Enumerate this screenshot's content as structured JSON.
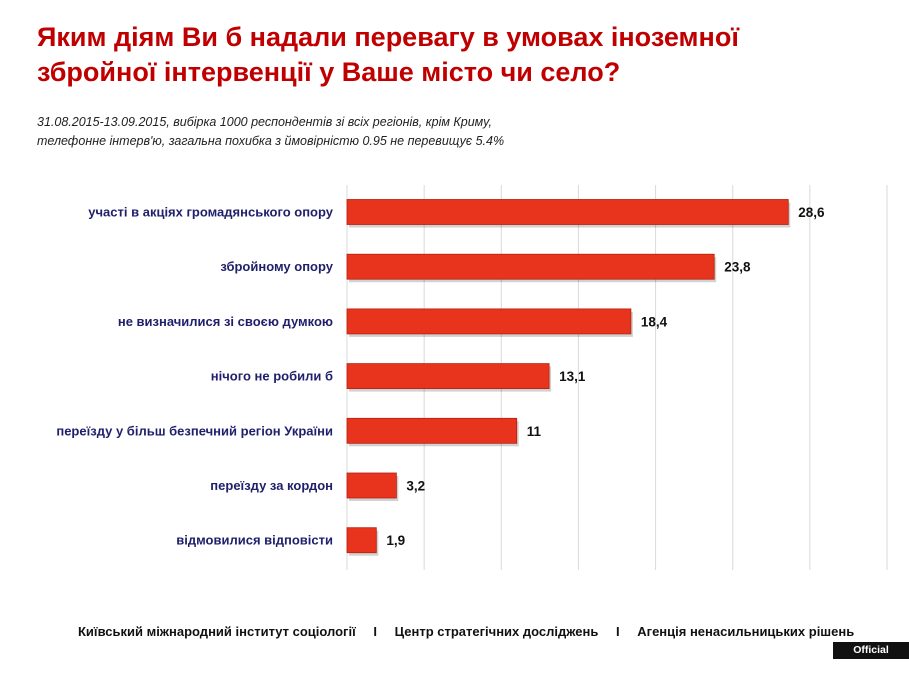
{
  "title": {
    "line1": "Яким діям Ви б надали перевагу в умовах іноземної",
    "line2": "збройної інтервенції у Ваше місто чи село?"
  },
  "subtitle": {
    "line1": "31.08.2015-13.09.2015,   вибірка 1000  респондентів зі всіх регіонів, крім Криму,",
    "line2": "телефонне інтерв'ю, загальна похибка з ймовірністю 0.95 не перевищує 5.4%"
  },
  "chart_data": {
    "type": "bar",
    "orientation": "horizontal",
    "categories": [
      "участі в акціях громадянського опору",
      "збройному опору",
      "не визначилися зі своєю думкою",
      "нічого не робили б",
      "переїзду у більш безпечний регіон України",
      "переїзду за кордон",
      "відмовилися відповісти"
    ],
    "values": [
      28.6,
      23.8,
      18.4,
      13.1,
      11,
      3.2,
      1.9
    ],
    "value_labels": [
      "28,6",
      "23,8",
      "18,4",
      "13,1",
      "11",
      "3,2",
      "1,9"
    ],
    "xlim": [
      0,
      35
    ],
    "grid": true,
    "bar_color": "#e8341c",
    "bar_edge_color": "#b42010"
  },
  "footer": {
    "org1": "Київський  міжнародний інститут соціології",
    "separator": "I",
    "org2": "Центр стратегічних досліджень",
    "org3": "Агенція ненасильницьких рішень"
  },
  "badge": {
    "label": "Official website"
  },
  "colors": {
    "title": "#c00000",
    "grid": "#d9d9d9"
  }
}
